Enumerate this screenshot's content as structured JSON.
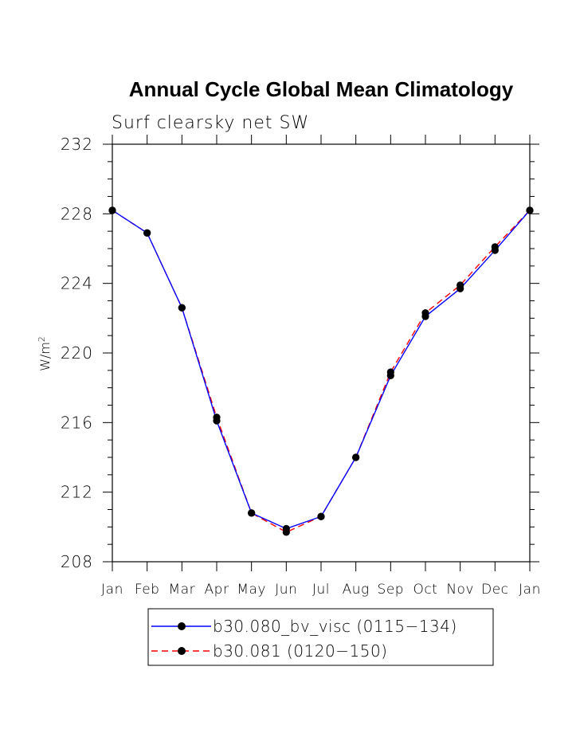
{
  "chart_data": {
    "type": "line",
    "title": "Annual Cycle Global Mean Climatology",
    "subtitle": "Surf clearsky net SW",
    "ylabel": "W/m",
    "ylabel_sup": "2",
    "xlabel": "",
    "categories": [
      "Jan",
      "Feb",
      "Mar",
      "Apr",
      "May",
      "Jun",
      "Jul",
      "Aug",
      "Sep",
      "Oct",
      "Nov",
      "Dec",
      "Jan"
    ],
    "ylim": [
      208,
      232
    ],
    "yticks": [
      "208",
      "212",
      "216",
      "220",
      "224",
      "228",
      "232"
    ],
    "series": [
      {
        "name": "b30.080_bv_visc (0115−134)",
        "color": "#0000ff",
        "line_style": "solid",
        "values": [
          228.2,
          226.9,
          222.6,
          216.1,
          210.8,
          209.9,
          210.6,
          214.0,
          218.7,
          222.1,
          223.7,
          225.9,
          228.2
        ]
      },
      {
        "name": "b30.081 (0120−150)",
        "color": "#ff0000",
        "line_style": "dashed",
        "values": [
          228.2,
          226.9,
          222.6,
          216.3,
          210.8,
          209.7,
          210.6,
          214.0,
          218.9,
          222.3,
          223.9,
          226.1,
          228.2
        ]
      }
    ],
    "grid": false,
    "legend_position": "bottom"
  }
}
